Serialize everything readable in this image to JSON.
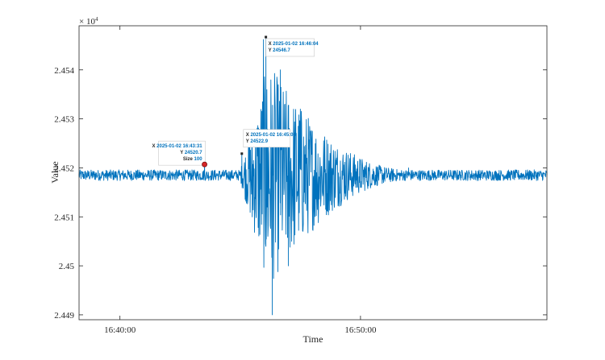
{
  "chart_data": {
    "type": "line",
    "title": "",
    "xlabel": "Time",
    "ylabel": "Value",
    "exponent_label": "× 10",
    "exponent_power": "4",
    "x_range": [
      "2025-01-02 16:38:18",
      "2025-01-02 16:57:45"
    ],
    "ylim": [
      24489,
      24549
    ],
    "y_ticks": [
      24490,
      24500,
      24510,
      24520,
      24530,
      24540
    ],
    "y_tick_labels": [
      "2.449",
      "2.45",
      "2.451",
      "2.452",
      "2.453",
      "2.454"
    ],
    "x_ticks": [
      "2025-01-02 16:40:00",
      "2025-01-02 16:50:00"
    ],
    "x_tick_labels": [
      "16:40:00",
      "16:50:00"
    ],
    "grid": false,
    "series": [
      {
        "color": "#0072BD",
        "baseline": 24518.5,
        "points": [
          [
            "2025-01-02 16:38:18",
            24518.3
          ],
          [
            "2025-01-02 16:39:00",
            24519.0
          ],
          [
            "2025-01-02 16:40:00",
            24518.7
          ],
          [
            "2025-01-02 16:41:00",
            24518.2
          ],
          [
            "2025-01-02 16:42:00",
            24518.9
          ],
          [
            "2025-01-02 16:43:31",
            24520.7
          ],
          [
            "2025-01-02 16:44:00",
            24518.4
          ],
          [
            "2025-01-02 16:45:04",
            24522.9
          ],
          [
            "2025-01-02 16:45:30",
            24510.0
          ],
          [
            "2025-01-02 16:45:58",
            24546.2
          ],
          [
            "2025-01-02 16:46:04",
            24546.7
          ],
          [
            "2025-01-02 16:46:20",
            24490.0
          ],
          [
            "2025-01-02 16:46:40",
            24540.0
          ],
          [
            "2025-01-02 16:47:00",
            24500.0
          ],
          [
            "2025-01-02 16:47:30",
            24532.0
          ],
          [
            "2025-01-02 16:48:00",
            24512.0
          ],
          [
            "2025-01-02 16:49:00",
            24522.0
          ],
          [
            "2025-01-02 16:50:00",
            24516.0
          ],
          [
            "2025-01-02 16:52:00",
            24520.0
          ],
          [
            "2025-01-02 16:54:00",
            24517.5
          ],
          [
            "2025-01-02 16:57:45",
            24518.5
          ]
        ]
      }
    ],
    "datatips": [
      {
        "x_label": "X",
        "x_value": "2025-01-02 16:43:31",
        "y_label": "Y",
        "y_value": "24520.7",
        "size_label": "Size",
        "size_value": "100",
        "marker": "circle"
      },
      {
        "x_label": "X",
        "x_value": "2025-01-02 16:45:04",
        "y_label": "Y",
        "y_value": "24522.9"
      },
      {
        "x_label": "X",
        "x_value": "2025-01-02 16:46:04",
        "y_label": "Y",
        "y_value": "24546.7"
      }
    ]
  }
}
